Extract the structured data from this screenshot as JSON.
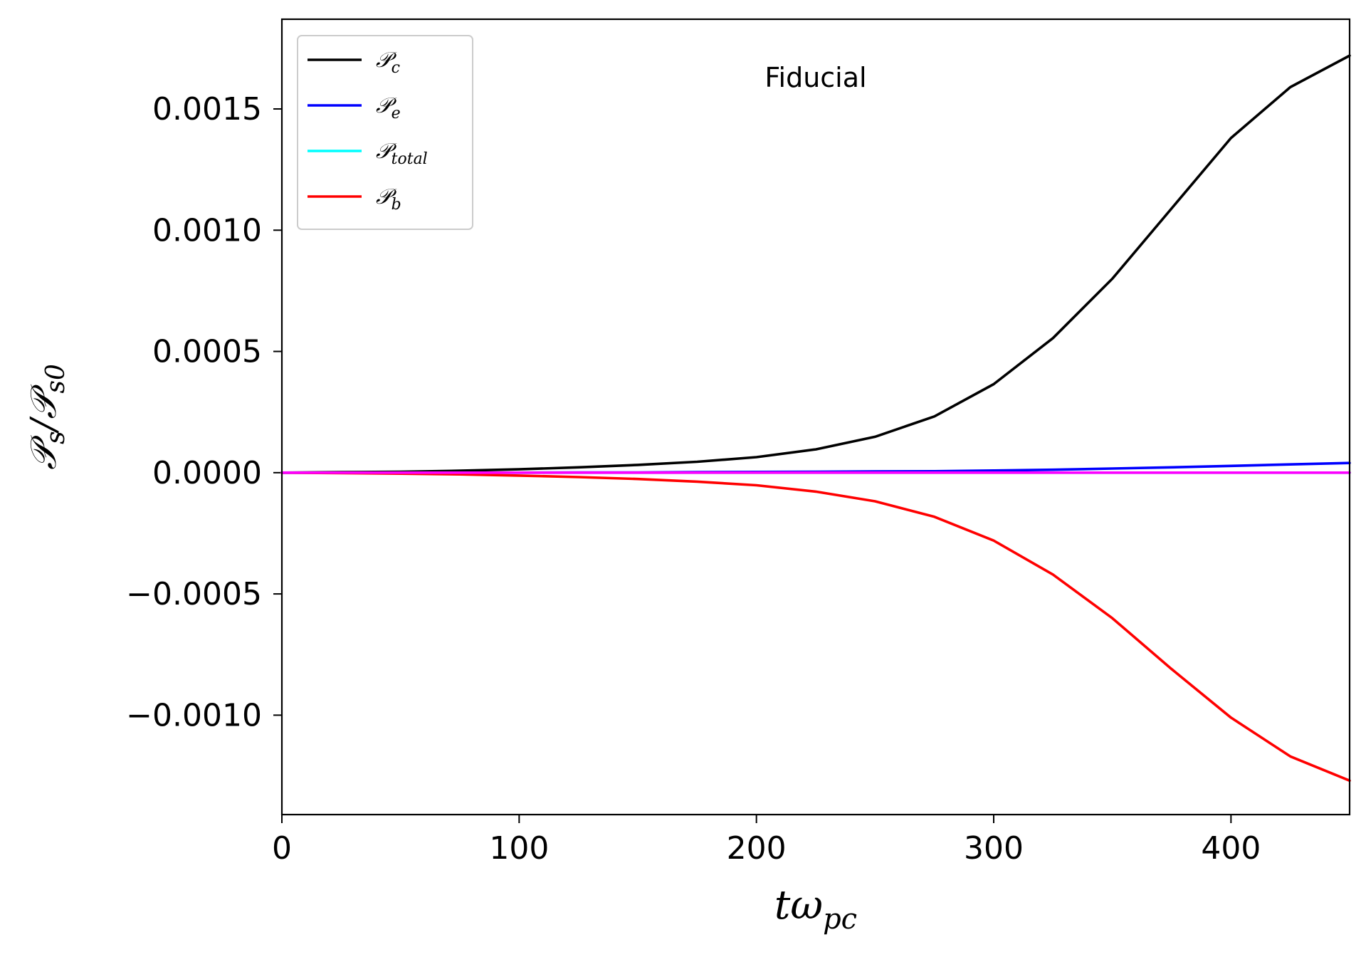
{
  "chart_data": {
    "type": "line",
    "title": "",
    "annotation": "Fiducial",
    "xlabel": {
      "main": "tω",
      "sub": "pc"
    },
    "ylabel": {
      "num": "𝒫",
      "num_sub": "s",
      "sep": "/",
      "den": "𝒫",
      "den_sub": "s0"
    },
    "xlim": [
      0,
      450
    ],
    "ylim": [
      -0.00141,
      0.00187
    ],
    "grid": false,
    "legend_position": "top-left",
    "xticks": [
      0,
      100,
      200,
      300,
      400
    ],
    "xtick_labels": [
      "0",
      "100",
      "200",
      "300",
      "400"
    ],
    "yticks": [
      -0.001,
      -0.0005,
      0.0,
      0.0005,
      0.001,
      0.0015
    ],
    "ytick_labels": [
      "−0.0010",
      "−0.0005",
      "0.0000",
      "0.0005",
      "0.0010",
      "0.0015"
    ],
    "x": [
      0,
      25,
      50,
      75,
      100,
      125,
      150,
      175,
      200,
      225,
      250,
      275,
      300,
      325,
      350,
      375,
      400,
      425,
      450
    ],
    "series": [
      {
        "name": "𝒫",
        "sub": "c",
        "color": "#000000",
        "in_legend": true,
        "values": [
          0.0,
          2e-06,
          4e-06,
          8e-06,
          1.4e-05,
          2.2e-05,
          3.2e-05,
          4.5e-05,
          6.4e-05,
          9.6e-05,
          0.000148,
          0.000232,
          0.000365,
          0.000555,
          0.0008,
          0.00109,
          0.00138,
          0.00159,
          0.00172
        ]
      },
      {
        "name": "𝒫",
        "sub": "e",
        "color": "#0000ff",
        "in_legend": true,
        "values": [
          0.0,
          0.0,
          0.0,
          0.0,
          0.0,
          1e-06,
          1e-06,
          2e-06,
          3e-06,
          4e-06,
          5e-06,
          6e-06,
          9e-06,
          1.2e-05,
          1.7e-05,
          2.2e-05,
          2.8e-05,
          3.4e-05,
          4e-05
        ]
      },
      {
        "name": "𝒫",
        "sub": "total",
        "color": "#00ffff",
        "in_legend": true,
        "values": [
          0.0,
          0.0,
          0.0,
          0.0,
          0.0,
          0.0,
          0.0,
          0.0,
          0.0,
          0.0,
          0.0,
          0.0,
          0.0,
          0.0,
          0.0,
          0.0,
          0.0,
          0.0,
          0.0
        ]
      },
      {
        "name": "𝒫",
        "sub": "b",
        "color": "#ff0000",
        "in_legend": true,
        "values": [
          0.0,
          -2e-06,
          -4e-06,
          -7e-06,
          -1.2e-05,
          -1.8e-05,
          -2.6e-05,
          -3.7e-05,
          -5.2e-05,
          -7.8e-05,
          -0.000118,
          -0.000182,
          -0.00028,
          -0.00042,
          -0.0006,
          -0.00081,
          -0.00101,
          -0.00117,
          -0.00127
        ]
      },
      {
        "name": "",
        "sub": "",
        "color": "#ff00ff",
        "in_legend": false,
        "values": [
          0.0,
          0.0,
          0.0,
          0.0,
          0.0,
          0.0,
          0.0,
          0.0,
          0.0,
          0.0,
          0.0,
          0.0,
          0.0,
          0.0,
          0.0,
          0.0,
          0.0,
          0.0,
          0.0
        ]
      }
    ]
  }
}
